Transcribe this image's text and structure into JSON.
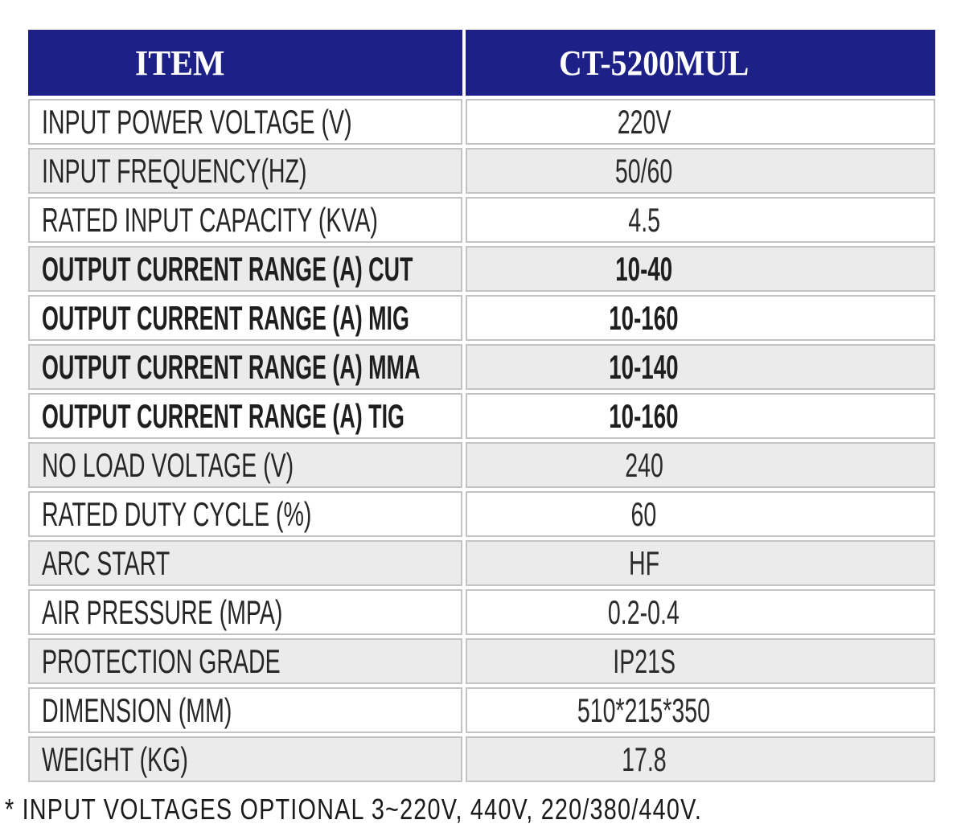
{
  "table": {
    "header": {
      "item_label": "ITEM",
      "model_label": "CT-5200MUL"
    },
    "rows": [
      {
        "label": "INPUT POWER VOLTAGE (V)",
        "value": "220V",
        "bold": false
      },
      {
        "label": "INPUT FREQUENCY(HZ)",
        "value": "50/60",
        "bold": false
      },
      {
        "label": "RATED INPUT CAPACITY (KVA)",
        "value": "4.5",
        "bold": false
      },
      {
        "label": "OUTPUT CURRENT RANGE (A) CUT",
        "value": "10-40",
        "bold": true
      },
      {
        "label": "OUTPUT CURRENT RANGE (A) MIG",
        "value": "10-160",
        "bold": true
      },
      {
        "label": "OUTPUT CURRENT RANGE (A) MMA",
        "value": "10-140",
        "bold": true
      },
      {
        "label": "OUTPUT CURRENT RANGE (A) TIG",
        "value": "10-160",
        "bold": true
      },
      {
        "label": "NO LOAD VOLTAGE (V)",
        "value": "240",
        "bold": false
      },
      {
        "label": "RATED DUTY CYCLE (%)",
        "value": "60",
        "bold": false
      },
      {
        "label": "ARC START",
        "value": "HF",
        "bold": false
      },
      {
        "label": "AIR PRESSURE (MPA)",
        "value": "0.2-0.4",
        "bold": false
      },
      {
        "label": "PROTECTION GRADE",
        "value": "IP21S",
        "bold": false
      },
      {
        "label": "DIMENSION (MM)",
        "value": "510*215*350",
        "bold": false
      },
      {
        "label": "WEIGHT (KG)",
        "value": "17.8",
        "bold": false
      }
    ]
  },
  "footnote": "* INPUT VOLTAGES OPTIONAL 3~220V, 440V, 220/380/440V.",
  "colors": {
    "header_bg": "#1d2087",
    "header_text": "#ffffff",
    "row_alt_bg": "#ebebeb",
    "row_bg": "#ffffff",
    "border": "#c3c3c3",
    "text": "#262626"
  }
}
